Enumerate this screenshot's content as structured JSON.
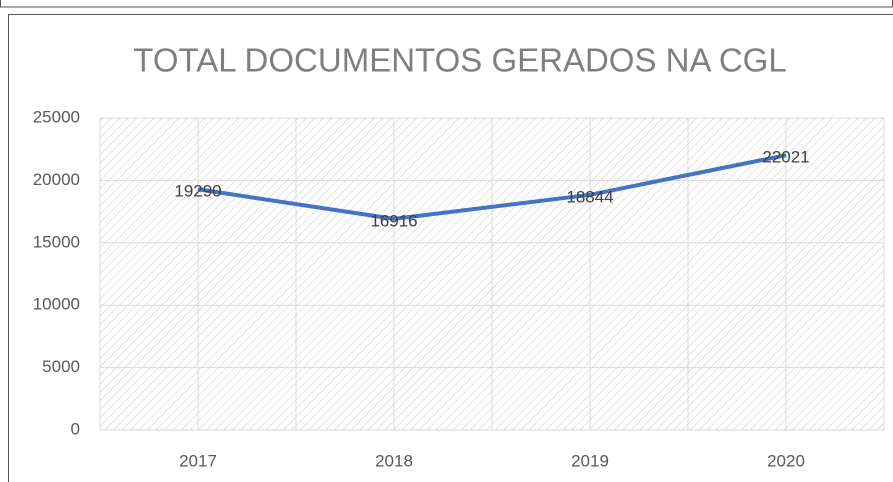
{
  "chart_data": {
    "type": "line",
    "title": "TOTAL DOCUMENTOS GERADOS NA CGL",
    "categories": [
      "2017",
      "2018",
      "2019",
      "2020"
    ],
    "values": [
      19290,
      16916,
      18844,
      22021
    ],
    "color": "#4472c4",
    "ylim": [
      0,
      25000
    ],
    "yticks": [
      0,
      5000,
      10000,
      15000,
      20000,
      25000
    ],
    "grid": true
  }
}
